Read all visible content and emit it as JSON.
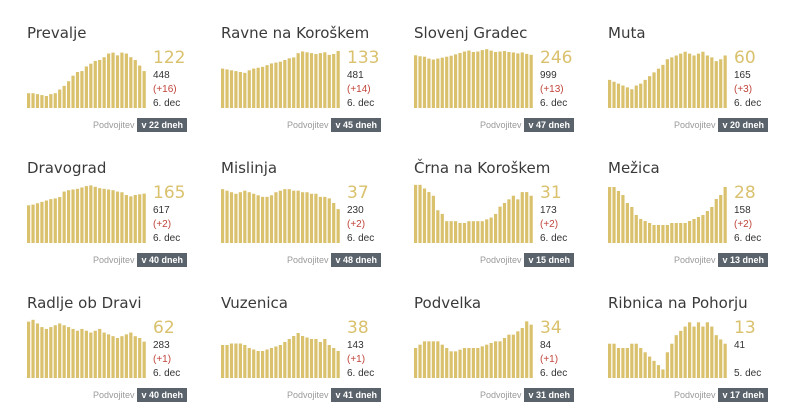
{
  "colors": {
    "bar": "#d9c16d",
    "accent_text": "#d9c16d",
    "delta": "#c0453a",
    "badge_bg": "#5a636b"
  },
  "chart_data": [
    {
      "type": "bar",
      "title": "Prevalje",
      "big": "122",
      "total": "448",
      "delta": "(+16)",
      "date": "6. dec",
      "doubling_label": "Podvojitev",
      "doubling": "v 22 dneh",
      "ylim": [
        0,
        130
      ],
      "values": [
        32,
        32,
        30,
        28,
        26,
        30,
        32,
        40,
        48,
        58,
        70,
        78,
        80,
        90,
        96,
        102,
        104,
        110,
        118,
        120,
        114,
        120,
        118,
        110,
        104,
        92,
        80
      ]
    },
    {
      "type": "bar",
      "title": "Ravne na Koroškem",
      "big": "133",
      "total": "481",
      "delta": "(+14)",
      "date": "6. dec",
      "doubling_label": "Podvojitev",
      "doubling": "v 45 dneh",
      "ylim": [
        0,
        140
      ],
      "values": [
        92,
        90,
        88,
        86,
        84,
        82,
        88,
        92,
        94,
        96,
        100,
        104,
        106,
        108,
        112,
        116,
        118,
        128,
        132,
        130,
        128,
        126,
        128,
        130,
        124,
        126,
        133
      ]
    },
    {
      "type": "bar",
      "title": "Slovenj Gradec",
      "big": "246",
      "total": "999",
      "delta": "(+13)",
      "date": "6. dec",
      "doubling_label": "Podvojitev",
      "doubling": "v 47 dneh",
      "ylim": [
        0,
        255
      ],
      "values": [
        224,
        220,
        218,
        210,
        206,
        210,
        214,
        218,
        222,
        228,
        234,
        240,
        244,
        238,
        240,
        246,
        250,
        244,
        238,
        240,
        242,
        238,
        236,
        232,
        236,
        230,
        226
      ]
    },
    {
      "type": "bar",
      "title": "Muta",
      "big": "60",
      "total": "165",
      "delta": "(+3)",
      "date": "6. dec",
      "doubling_label": "Podvojitev",
      "doubling": "v 20 dneh",
      "ylim": [
        0,
        64
      ],
      "values": [
        30,
        28,
        26,
        24,
        22,
        20,
        24,
        26,
        30,
        34,
        38,
        42,
        46,
        52,
        54,
        56,
        58,
        60,
        58,
        56,
        58,
        60,
        56,
        54,
        50,
        52,
        56
      ]
    },
    {
      "type": "bar",
      "title": "Dravograd",
      "big": "165",
      "total": "617",
      "delta": "(+2)",
      "date": "6. dec",
      "doubling_label": "Podvojitev",
      "doubling": "v 40 dneh",
      "ylim": [
        0,
        175
      ],
      "values": [
        110,
        112,
        116,
        120,
        124,
        128,
        130,
        134,
        150,
        154,
        156,
        158,
        162,
        166,
        168,
        164,
        160,
        158,
        156,
        154,
        150,
        148,
        140,
        136,
        140,
        142,
        144
      ]
    },
    {
      "type": "bar",
      "title": "Mislinja",
      "big": "37",
      "total": "230",
      "delta": "(+2)",
      "date": "6. dec",
      "doubling_label": "Podvojitev",
      "doubling": "v 48 dneh",
      "ylim": [
        0,
        39
      ],
      "values": [
        35,
        34,
        33,
        32,
        33,
        34,
        33,
        32,
        31,
        30,
        30,
        31,
        33,
        34,
        35,
        35,
        34,
        34,
        33,
        33,
        32,
        32,
        30,
        30,
        29,
        26,
        22
      ]
    },
    {
      "type": "bar",
      "title": "Črna na Koroškem",
      "big": "31",
      "total": "173",
      "delta": "(+2)",
      "date": "6. dec",
      "doubling_label": "Podvojitev",
      "doubling": "v 15 dneh",
      "ylim": [
        0,
        33
      ],
      "values": [
        32,
        32,
        30,
        28,
        26,
        18,
        16,
        12,
        12,
        12,
        11,
        11,
        12,
        12,
        12,
        12,
        13,
        14,
        16,
        20,
        22,
        24,
        26,
        24,
        28,
        28,
        26
      ]
    },
    {
      "type": "bar",
      "title": "Mežica",
      "big": "28",
      "total": "158",
      "delta": "(+2)",
      "date": "6. dec",
      "doubling_label": "Podvojitev",
      "doubling": "v 13 dneh",
      "ylim": [
        0,
        30
      ],
      "values": [
        28,
        28,
        26,
        24,
        20,
        18,
        14,
        12,
        11,
        10,
        9,
        9,
        9,
        9,
        10,
        10,
        10,
        10,
        11,
        12,
        13,
        14,
        16,
        18,
        22,
        24,
        28
      ]
    },
    {
      "type": "bar",
      "title": "Radlje ob Dravi",
      "big": "62",
      "total": "283",
      "delta": "(+1)",
      "date": "6. dec",
      "doubling_label": "Podvojitev",
      "doubling": "v 40 dneh",
      "ylim": [
        0,
        66
      ],
      "values": [
        62,
        64,
        60,
        56,
        54,
        56,
        58,
        60,
        58,
        56,
        54,
        52,
        54,
        52,
        50,
        52,
        54,
        50,
        48,
        46,
        44,
        46,
        48,
        50,
        46,
        44,
        40
      ]
    },
    {
      "type": "bar",
      "title": "Vuzenica",
      "big": "38",
      "total": "143",
      "delta": "(+1)",
      "date": "6. dec",
      "doubling_label": "Podvojitev",
      "doubling": "v 41 dneh",
      "ylim": [
        0,
        40
      ],
      "values": [
        22,
        22,
        23,
        23,
        23,
        22,
        20,
        19,
        18,
        18,
        19,
        20,
        21,
        22,
        24,
        26,
        28,
        30,
        28,
        27,
        26,
        26,
        24,
        26,
        22,
        20,
        18
      ]
    },
    {
      "type": "bar",
      "title": "Podvelka",
      "big": "34",
      "total": "84",
      "delta": "(+1)",
      "date": "6. dec",
      "doubling_label": "Podvojitev",
      "doubling": "v 31 dneh",
      "ylim": [
        0,
        36
      ],
      "values": [
        18,
        20,
        22,
        22,
        22,
        22,
        20,
        18,
        16,
        16,
        17,
        18,
        18,
        18,
        18,
        19,
        20,
        21,
        22,
        22,
        24,
        26,
        26,
        28,
        30,
        34,
        32
      ]
    },
    {
      "type": "bar",
      "title": "Ribnica na Pohorju",
      "big": "13",
      "total": "41",
      "delta": "",
      "date": "5. dec",
      "doubling_label": "Podvojitev",
      "doubling": "v 17 dneh",
      "ylim": [
        0,
        14
      ],
      "values": [
        8,
        8,
        7,
        7,
        7,
        8,
        8,
        7,
        6,
        5,
        4,
        3,
        2,
        6,
        8,
        10,
        11,
        12,
        13,
        12,
        13,
        12,
        13,
        12,
        10,
        9,
        8
      ]
    }
  ]
}
